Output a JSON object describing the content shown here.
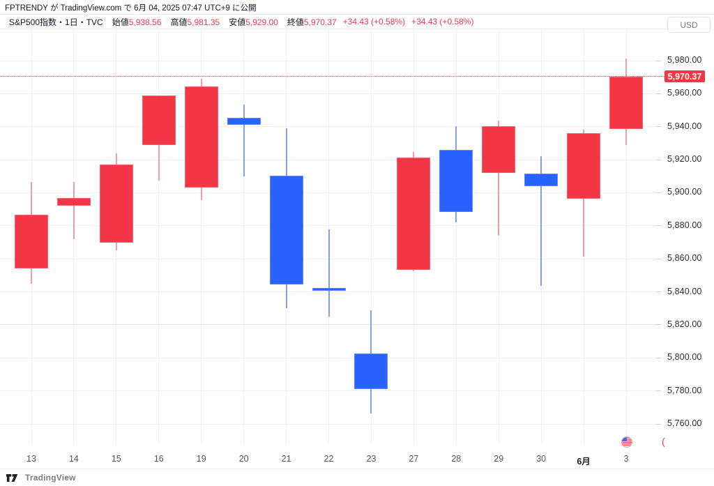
{
  "attribution": {
    "text": "FPTRENDY が TradingView.com で 6月 04, 2025 07:47 UTC+9 に公開"
  },
  "legend": {
    "title": "S&P500指数・1日・TVC",
    "fields": [
      {
        "label": "始値",
        "value": "5,938.56"
      },
      {
        "label": "高値",
        "value": "5,981.35"
      },
      {
        "label": "安値",
        "value": "5,929.00"
      },
      {
        "label": "終値",
        "value": "5,970.37"
      }
    ],
    "change_1": "+34.43 (+0.58%)",
    "change_2": "+34.43 (+0.58%)"
  },
  "currency_label": "USD",
  "price_axis": {
    "last_price_label": "5,970.37",
    "ticks": [
      {
        "label": "5,980.00",
        "value": 5980
      },
      {
        "label": "5,970.37",
        "value": 5970.37,
        "is_badge": true
      },
      {
        "label": "5,960.00",
        "value": 5960
      },
      {
        "label": "5,940.00",
        "value": 5940
      },
      {
        "label": "5,920.00",
        "value": 5920
      },
      {
        "label": "5,900.00",
        "value": 5900
      },
      {
        "label": "5,880.00",
        "value": 5880
      },
      {
        "label": "5,860.00",
        "value": 5860
      },
      {
        "label": "5,840.00",
        "value": 5840
      },
      {
        "label": "5,820.00",
        "value": 5820
      },
      {
        "label": "5,800.00",
        "value": 5800
      },
      {
        "label": "5,780.00",
        "value": 5780
      },
      {
        "label": "5,760.00",
        "value": 5760
      }
    ]
  },
  "time_axis": {
    "labels": [
      "13",
      "14",
      "15",
      "16",
      "19",
      "20",
      "21",
      "22",
      "23",
      "27",
      "28",
      "29",
      "30",
      "6月",
      "3"
    ],
    "bold_index": 13
  },
  "footer": {
    "brand": "TradingView"
  },
  "stray": {
    "paren_glyph": "("
  },
  "icons": {
    "flag": "us-flag-icon",
    "logo": "tradingview-logo-icon"
  },
  "colors": {
    "up_candle": "#f23645",
    "down_candle": "#2962ff",
    "up_wick": "#f59ba4",
    "down_wick": "#7e9ef8",
    "last_price_badge": "#f23645",
    "grid": "#f2eef2",
    "special_grid": "#f8d9e0"
  },
  "chart_data": {
    "type": "candlestick",
    "title": "S&P500指数・1日・TVC",
    "currency": "USD",
    "x_labels": [
      "13",
      "14",
      "15",
      "16",
      "19",
      "20",
      "21",
      "22",
      "23",
      "27",
      "28",
      "29",
      "30",
      "6月",
      "3"
    ],
    "y_axis": {
      "visible_range": [
        5745,
        5998
      ],
      "tick_step": 20,
      "grid": true
    },
    "special_level": 5820,
    "last_price": 5970.37,
    "legend_ohlc": {
      "open": 5938.56,
      "high": 5981.35,
      "low": 5929.0,
      "close": 5970.37,
      "change": "+34.43",
      "change_pct": "+0.58%"
    },
    "candles": [
      {
        "date": "13",
        "high": 5906.5,
        "low": 5845.0,
        "body_top": 5886.5,
        "body_bottom": 5854.0,
        "color": "red"
      },
      {
        "date": "14",
        "high": 5906.5,
        "low": 5872.0,
        "body_top": 5897.0,
        "body_bottom": 5892.0,
        "color": "red"
      },
      {
        "date": "15",
        "high": 5924.0,
        "low": 5865.0,
        "body_top": 5917.0,
        "body_bottom": 5870.0,
        "color": "red"
      },
      {
        "date": "16",
        "high": 5959.0,
        "low": 5907.5,
        "body_top": 5959.0,
        "body_bottom": 5929.0,
        "color": "red"
      },
      {
        "date": "19",
        "high": 5969.0,
        "low": 5895.5,
        "body_top": 5964.5,
        "body_bottom": 5903.0,
        "color": "red"
      },
      {
        "date": "20",
        "high": 5953.5,
        "low": 5910.0,
        "body_top": 5945.5,
        "body_bottom": 5941.0,
        "color": "blue"
      },
      {
        "date": "21",
        "high": 5939.0,
        "low": 5830.0,
        "body_top": 5910.5,
        "body_bottom": 5844.5,
        "color": "blue"
      },
      {
        "date": "22",
        "high": 5878.0,
        "low": 5825.0,
        "body_top": 5842.2,
        "body_bottom": 5840.8,
        "color": "blue"
      },
      {
        "date": "23",
        "high": 5829.0,
        "low": 5766.5,
        "body_top": 5802.5,
        "body_bottom": 5781.0,
        "color": "blue"
      },
      {
        "date": "27",
        "high": 5924.5,
        "low": 5852.5,
        "body_top": 5921.5,
        "body_bottom": 5853.5,
        "color": "red"
      },
      {
        "date": "28",
        "high": 5940.5,
        "low": 5882.0,
        "body_top": 5926.0,
        "body_bottom": 5888.5,
        "color": "blue"
      },
      {
        "date": "29",
        "high": 5943.5,
        "low": 5874.0,
        "body_top": 5940.5,
        "body_bottom": 5912.0,
        "color": "red"
      },
      {
        "date": "30",
        "high": 5922.0,
        "low": 5843.5,
        "body_top": 5911.5,
        "body_bottom": 5904.0,
        "color": "blue"
      },
      {
        "date": "6月",
        "high": 5938.0,
        "low": 5861.5,
        "body_top": 5936.0,
        "body_bottom": 5896.5,
        "color": "red"
      },
      {
        "date": "3",
        "high": 5981.35,
        "low": 5929.0,
        "body_top": 5970.37,
        "body_bottom": 5938.56,
        "color": "red"
      }
    ]
  }
}
